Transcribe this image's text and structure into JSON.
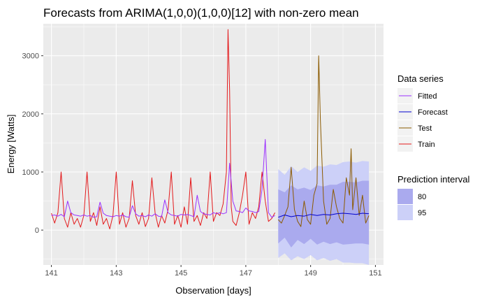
{
  "chart_data": {
    "type": "line",
    "title": "Forecasts from ARIMA(1,0,0)(1,0,0)[12] with non-zero mean",
    "xlabel": "Observation [days]",
    "ylabel": "Energy [Watts]",
    "xlim": [
      140.75,
      151.25
    ],
    "ylim": [
      -600,
      3550
    ],
    "x_ticks": [
      141,
      143,
      145,
      147,
      149,
      151
    ],
    "x_tick_labels": [
      "141",
      "143",
      "145",
      "147",
      "149",
      "151"
    ],
    "y_ticks": [
      0,
      1000,
      2000,
      3000
    ],
    "y_tick_labels": [
      "0",
      "1000",
      "2000",
      "3000"
    ],
    "grid": true,
    "legend_placement": "right",
    "legend_series_title": "Data series",
    "legend_interval_title": "Prediction interval",
    "series": [
      {
        "name": "Fitted",
        "color": "#9b30ff",
        "x": [
          141.0,
          141.1,
          141.2,
          141.3,
          141.4,
          141.5,
          141.6,
          141.7,
          141.8,
          141.9,
          142.0,
          142.1,
          142.2,
          142.3,
          142.4,
          142.5,
          142.6,
          142.7,
          142.8,
          142.9,
          143.0,
          143.1,
          143.2,
          143.3,
          143.4,
          143.5,
          143.6,
          143.7,
          143.8,
          143.9,
          144.0,
          144.1,
          144.2,
          144.3,
          144.4,
          144.5,
          144.6,
          144.7,
          144.8,
          144.9,
          145.0,
          145.1,
          145.2,
          145.3,
          145.4,
          145.5,
          145.6,
          145.7,
          145.8,
          145.9,
          146.0,
          146.1,
          146.2,
          146.3,
          146.4,
          146.5,
          146.6,
          146.7,
          146.8,
          146.9,
          147.0,
          147.1,
          147.2,
          147.3,
          147.4,
          147.5,
          147.6,
          147.7,
          147.8,
          147.9
        ],
        "values": [
          250,
          260,
          240,
          270,
          230,
          500,
          300,
          260,
          250,
          240,
          260,
          240,
          250,
          220,
          230,
          480,
          290,
          250,
          240,
          230,
          250,
          240,
          260,
          230,
          220,
          420,
          280,
          240,
          250,
          230,
          260,
          240,
          280,
          240,
          230,
          520,
          300,
          260,
          250,
          240,
          270,
          260,
          270,
          250,
          230,
          600,
          320,
          280,
          270,
          260,
          300,
          280,
          300,
          280,
          300,
          1150,
          500,
          330,
          320,
          300,
          380,
          330,
          320,
          300,
          320,
          700,
          1560,
          300,
          220,
          250
        ]
      },
      {
        "name": "Forecast",
        "color": "#0000cd",
        "x": [
          148.0,
          148.2,
          148.4,
          148.6,
          148.8,
          149.0,
          149.2,
          149.4,
          149.6,
          149.8,
          150.0,
          150.2,
          150.4,
          150.6,
          150.8
        ],
        "values": [
          220,
          260,
          230,
          250,
          240,
          270,
          250,
          270,
          260,
          280,
          290,
          280,
          270,
          290,
          280
        ]
      },
      {
        "name": "Test",
        "color": "#8b5a00",
        "x": [
          148.0,
          148.1,
          148.2,
          148.3,
          148.4,
          148.5,
          148.6,
          148.7,
          148.8,
          148.9,
          149.0,
          149.1,
          149.2,
          149.25,
          149.3,
          149.4,
          149.5,
          149.6,
          149.7,
          149.8,
          149.9,
          150.0,
          150.1,
          150.2,
          150.25,
          150.3,
          150.4,
          150.5,
          150.6,
          150.7,
          150.8
        ],
        "values": [
          180,
          120,
          250,
          400,
          1080,
          350,
          150,
          60,
          500,
          180,
          100,
          600,
          800,
          3000,
          1900,
          500,
          100,
          200,
          700,
          400,
          200,
          120,
          900,
          600,
          1400,
          350,
          900,
          250,
          600,
          120,
          250
        ]
      },
      {
        "name": "Train",
        "color": "#e41a1c",
        "x": [
          141.0,
          141.1,
          141.2,
          141.3,
          141.4,
          141.5,
          141.6,
          141.7,
          141.8,
          141.9,
          142.0,
          142.1,
          142.2,
          142.3,
          142.4,
          142.5,
          142.6,
          142.7,
          142.8,
          142.9,
          143.0,
          143.1,
          143.2,
          143.3,
          143.4,
          143.5,
          143.6,
          143.7,
          143.8,
          143.9,
          144.0,
          144.1,
          144.2,
          144.3,
          144.4,
          144.5,
          144.6,
          144.7,
          144.8,
          144.9,
          145.0,
          145.1,
          145.2,
          145.3,
          145.4,
          145.5,
          145.6,
          145.7,
          145.8,
          145.9,
          146.0,
          146.1,
          146.2,
          146.3,
          146.4,
          146.45,
          146.5,
          146.55,
          146.6,
          146.7,
          146.8,
          146.9,
          147.0,
          147.1,
          147.2,
          147.3,
          147.4,
          147.5,
          147.6,
          147.7,
          147.8,
          147.9
        ],
        "values": [
          290,
          120,
          300,
          1000,
          200,
          50,
          300,
          100,
          200,
          50,
          250,
          1000,
          150,
          300,
          80,
          400,
          100,
          200,
          20,
          250,
          1000,
          100,
          300,
          50,
          200,
          850,
          250,
          100,
          300,
          60,
          200,
          900,
          300,
          50,
          250,
          120,
          350,
          1000,
          100,
          250,
          50,
          400,
          100,
          900,
          150,
          250,
          80,
          300,
          200,
          1000,
          150,
          300,
          250,
          450,
          1000,
          3450,
          2400,
          400,
          150,
          80,
          300,
          600,
          1000,
          100,
          300,
          200,
          400,
          1000,
          500,
          150,
          200,
          300
        ]
      }
    ],
    "intervals": [
      {
        "name": "80",
        "color": "#aaaaee",
        "x": [
          148.0,
          148.2,
          148.4,
          148.6,
          148.8,
          149.0,
          149.2,
          149.4,
          149.6,
          149.8,
          150.0,
          150.2,
          150.4,
          150.6,
          150.8
        ],
        "lower": [
          -230,
          -130,
          -300,
          -170,
          -240,
          -150,
          -250,
          -200,
          -240,
          -210,
          -250,
          -240,
          -230,
          -230,
          -250
        ],
        "upper": [
          700,
          650,
          770,
          700,
          730,
          690,
          770,
          750,
          780,
          780,
          830,
          830,
          820,
          850,
          850
        ]
      },
      {
        "name": "95",
        "color": "#ccd0f8",
        "x": [
          148.0,
          148.2,
          148.4,
          148.6,
          148.8,
          149.0,
          149.2,
          149.4,
          149.6,
          149.8,
          150.0,
          150.2,
          150.4,
          150.6,
          150.8
        ],
        "lower": [
          -480,
          -400,
          -520,
          -450,
          -500,
          -430,
          -520,
          -480,
          -530,
          -500,
          -560,
          -560,
          -570,
          -570,
          -600
        ],
        "upper": [
          1050,
          950,
          1100,
          1000,
          1080,
          1020,
          1110,
          1090,
          1130,
          1120,
          1170,
          1180,
          1160,
          1190,
          1180
        ]
      }
    ]
  }
}
